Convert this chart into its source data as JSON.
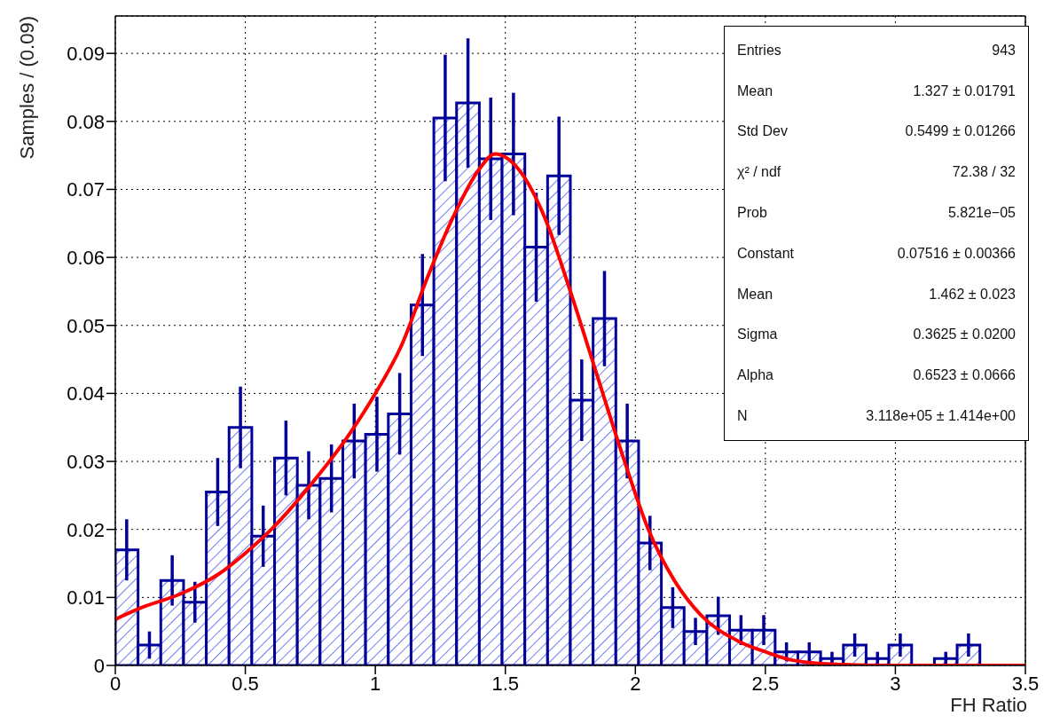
{
  "chart_data": {
    "type": "histogram",
    "xlabel": "FH Ratio",
    "ylabel": "Samples / (0.09)",
    "bins": [
      0,
      0.0875,
      0.175,
      0.2625,
      0.35,
      0.4375,
      0.525,
      0.6125,
      0.7,
      0.7875,
      0.875,
      0.9625,
      1.05,
      1.1375,
      1.225,
      1.3125,
      1.4,
      1.4875,
      1.575,
      1.6625,
      1.75,
      1.8375,
      1.925,
      2.0125,
      2.1,
      2.1875,
      2.275,
      2.3625,
      2.45,
      2.5375,
      2.625,
      2.7125,
      2.8,
      2.8875,
      2.975,
      3.0625,
      3.15,
      3.2375,
      3.325,
      3.4125,
      3.5
    ],
    "series": [
      {
        "color": "#000099",
        "values": [
          0.017,
          0.003,
          0.0125,
          0.0093,
          0.0255,
          0.035,
          0.019,
          0.0305,
          0.0265,
          0.0275,
          0.033,
          0.034,
          0.037,
          0.053,
          0.0805,
          0.0827,
          0.0745,
          0.0752,
          0.0615,
          0.072,
          0.039,
          0.051,
          0.033,
          0.018,
          0.0085,
          0.005,
          0.0073,
          0.0052,
          0.0052,
          0.002,
          0.002,
          0.001,
          0.003,
          0.001,
          0.003,
          0,
          0.001,
          0.003,
          0,
          0
        ],
        "errors": [
          0.0045,
          0.002,
          0.0037,
          0.003,
          0.005,
          0.006,
          0.0045,
          0.0055,
          0.005,
          0.005,
          0.0055,
          0.0055,
          0.006,
          0.0075,
          0.0093,
          0.0095,
          0.009,
          0.009,
          0.008,
          0.0087,
          0.006,
          0.007,
          0.0055,
          0.004,
          0.003,
          0.002,
          0.0028,
          0.0022,
          0.0022,
          0.0014,
          0.0014,
          0.001,
          0.0017,
          0.001,
          0.0017,
          null,
          0.001,
          0.0017,
          null,
          null
        ]
      },
      {
        "type": "line",
        "color": "#ff0000",
        "x": [
          0,
          0.1,
          0.25,
          0.4,
          0.5,
          0.6,
          0.75,
          0.9,
          1.0,
          1.1,
          1.2,
          1.3,
          1.4,
          1.46,
          1.55,
          1.65,
          1.75,
          1.85,
          1.95,
          2.05,
          2.15,
          2.25,
          2.4,
          2.5,
          2.6,
          2.75,
          3.0,
          3.5
        ],
        "values": [
          0.0068,
          0.0085,
          0.0105,
          0.0135,
          0.0165,
          0.02,
          0.0265,
          0.034,
          0.04,
          0.047,
          0.057,
          0.066,
          0.073,
          0.0752,
          0.073,
          0.066,
          0.055,
          0.043,
          0.031,
          0.02,
          0.0125,
          0.0075,
          0.0035,
          0.002,
          0.0008,
          0.0002,
          0,
          0
        ]
      }
    ],
    "xlim": [
      0,
      3.5
    ],
    "xticks": [
      0,
      0.5,
      1,
      1.5,
      2,
      2.5,
      3,
      3.5
    ],
    "ylim": [
      0,
      0.0955
    ],
    "yticks": [
      0,
      0.01,
      0.02,
      0.03,
      0.04,
      0.05,
      0.06,
      0.07,
      0.08,
      0.09
    ],
    "grid": true,
    "marker": "none",
    "line_style": "solid",
    "annotations": [
      "Entries",
      "943",
      "Mean",
      "1.327 ± 0.01791",
      "Std Dev",
      "0.5499 ± 0.01266",
      "χ² / ndf",
      "72.38 / 32",
      "Prob",
      "5.821e−05",
      "Constant",
      "0.07516 ± 0.00366",
      "Mean",
      "1.462 ± 0.023",
      "Sigma",
      "0.3625 ± 0.0200",
      "Alpha",
      "0.6523 ± 0.0666",
      "N",
      "3.118e+05 ± 1.414e+00"
    ]
  }
}
